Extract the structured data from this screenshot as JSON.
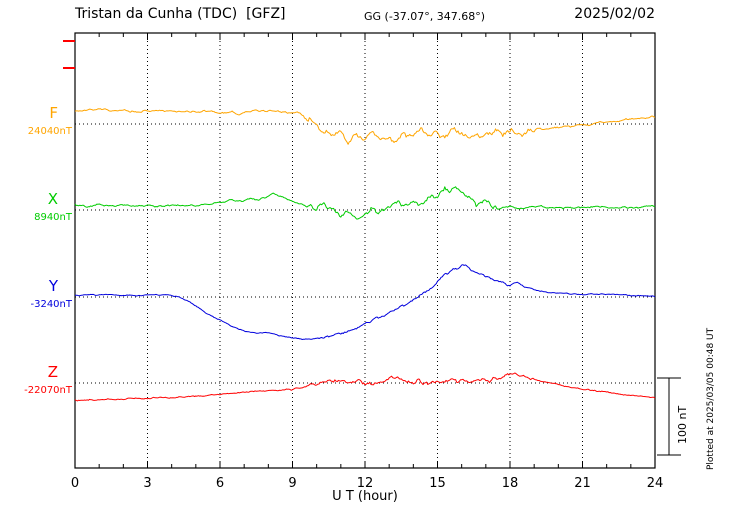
{
  "chart_data": {
    "type": "line",
    "title": "Tristan da Cunha (TDC)  [GFZ]",
    "coords_label": "GG (-37.07°, 347.68°)",
    "date": "2025/02/02",
    "xlabel": "U T (hour)",
    "xlim": [
      0,
      24
    ],
    "x_ticks": [
      0,
      3,
      6,
      9,
      12,
      15,
      18,
      21,
      24
    ],
    "x_minor_tick_hours": 1,
    "grid": "dotted vertical lines at 3-hour marks; dotted horizontal baseline for each component",
    "legend_position": "left margin, one colored label per component",
    "scale_bar": {
      "label": "100 nT",
      "nT": 100
    },
    "plotted_note": "Plotted at 2025/03/05 00:48 UT",
    "axis_color": "#000000",
    "series": [
      {
        "name": "F",
        "label": "F",
        "baseline_label": "24040nT",
        "baseline_nT": 24040,
        "color": "#ffa500",
        "unit": "nT",
        "offsets_keypoints": [
          [
            0,
            16
          ],
          [
            0.5,
            18
          ],
          [
            1,
            20
          ],
          [
            1.5,
            17
          ],
          [
            2,
            18
          ],
          [
            2.5,
            16
          ],
          [
            3,
            17
          ],
          [
            3.5,
            18
          ],
          [
            4,
            16
          ],
          [
            4.5,
            17
          ],
          [
            5,
            15
          ],
          [
            5.5,
            17
          ],
          [
            6,
            14
          ],
          [
            6.5,
            16
          ],
          [
            6.8,
            11
          ],
          [
            7,
            16
          ],
          [
            7.5,
            17
          ],
          [
            8,
            18
          ],
          [
            8.5,
            16
          ],
          [
            9,
            15
          ],
          [
            9.3,
            14
          ],
          [
            9.6,
            8
          ],
          [
            10,
            -2
          ],
          [
            10.3,
            -10
          ],
          [
            10.6,
            -16
          ],
          [
            11,
            -12
          ],
          [
            11.3,
            -22
          ],
          [
            11.6,
            -14
          ],
          [
            12,
            -18
          ],
          [
            12.3,
            -10
          ],
          [
            12.6,
            -20
          ],
          [
            13,
            -14
          ],
          [
            13.3,
            -26
          ],
          [
            13.6,
            -12
          ],
          [
            14,
            -16
          ],
          [
            14.3,
            -8
          ],
          [
            14.6,
            -14
          ],
          [
            15,
            -10
          ],
          [
            15.3,
            -16
          ],
          [
            15.6,
            -8
          ],
          [
            16,
            -12
          ],
          [
            16.3,
            -18
          ],
          [
            16.6,
            -12
          ],
          [
            17,
            -14
          ],
          [
            17.3,
            -9
          ],
          [
            17.6,
            -12
          ],
          [
            18,
            -6
          ],
          [
            18.4,
            -12
          ],
          [
            18.8,
            -8
          ],
          [
            19,
            -6
          ],
          [
            19.5,
            -7
          ],
          [
            20,
            -4
          ],
          [
            20.5,
            -3
          ],
          [
            21,
            -1
          ],
          [
            21.5,
            1
          ],
          [
            22,
            3
          ],
          [
            22.5,
            5
          ],
          [
            23,
            6
          ],
          [
            23.5,
            8
          ],
          [
            24,
            10
          ]
        ],
        "noise": {
          "quiet": 1.5,
          "active": 4.5,
          "active_start": 9.5,
          "active_end": 19
        }
      },
      {
        "name": "X",
        "label": "X",
        "baseline_label": "8940nT",
        "baseline_nT": 8940,
        "color": "#00cc00",
        "unit": "nT",
        "offsets_keypoints": [
          [
            0,
            7
          ],
          [
            0.5,
            5
          ],
          [
            1,
            7
          ],
          [
            1.5,
            6
          ],
          [
            2,
            8
          ],
          [
            2.5,
            5
          ],
          [
            3,
            6
          ],
          [
            3.5,
            5
          ],
          [
            4,
            7
          ],
          [
            4.5,
            5
          ],
          [
            5,
            6
          ],
          [
            5.5,
            8
          ],
          [
            6,
            9
          ],
          [
            6.5,
            13
          ],
          [
            7,
            11
          ],
          [
            7.3,
            15
          ],
          [
            7.6,
            13
          ],
          [
            8,
            19
          ],
          [
            8.2,
            22
          ],
          [
            8.5,
            18
          ],
          [
            9,
            12
          ],
          [
            9.5,
            6
          ],
          [
            10,
            2
          ],
          [
            10.3,
            6
          ],
          [
            10.6,
            0
          ],
          [
            11,
            -8
          ],
          [
            11.3,
            -2
          ],
          [
            11.6,
            -10
          ],
          [
            12,
            -4
          ],
          [
            12.3,
            2
          ],
          [
            12.6,
            -4
          ],
          [
            13,
            6
          ],
          [
            13.3,
            10
          ],
          [
            13.6,
            4
          ],
          [
            14,
            12
          ],
          [
            14.3,
            8
          ],
          [
            14.6,
            14
          ],
          [
            15,
            18
          ],
          [
            15.3,
            26
          ],
          [
            15.5,
            20
          ],
          [
            15.7,
            30
          ],
          [
            16,
            24
          ],
          [
            16.3,
            14
          ],
          [
            16.6,
            8
          ],
          [
            17,
            10
          ],
          [
            17.3,
            4
          ],
          [
            17.6,
            2
          ],
          [
            18,
            5
          ],
          [
            18.5,
            2
          ],
          [
            19,
            4
          ],
          [
            19.5,
            3
          ],
          [
            20,
            4
          ],
          [
            21,
            3
          ],
          [
            22,
            4
          ],
          [
            23,
            3
          ],
          [
            24,
            5
          ]
        ],
        "noise": {
          "quiet": 1.5,
          "active": 4,
          "active_start": 9.5,
          "active_end": 17.5
        }
      },
      {
        "name": "Y",
        "label": "Y",
        "baseline_label": "-3240nT",
        "baseline_nT": -3240,
        "color": "#0000dd",
        "unit": "nT",
        "offsets_keypoints": [
          [
            0,
            2
          ],
          [
            1,
            3
          ],
          [
            2,
            2
          ],
          [
            3,
            2
          ],
          [
            3.5,
            3
          ],
          [
            4,
            2
          ],
          [
            4.3,
            0
          ],
          [
            4.6,
            -4
          ],
          [
            5,
            -12
          ],
          [
            5.5,
            -22
          ],
          [
            6,
            -30
          ],
          [
            6.5,
            -38
          ],
          [
            7,
            -44
          ],
          [
            7.5,
            -47
          ],
          [
            8,
            -46
          ],
          [
            8.3,
            -49
          ],
          [
            8.6,
            -51
          ],
          [
            9,
            -53
          ],
          [
            9.5,
            -55
          ],
          [
            10,
            -54
          ],
          [
            10.5,
            -51
          ],
          [
            11,
            -47
          ],
          [
            11.5,
            -42
          ],
          [
            12,
            -35
          ],
          [
            12.5,
            -28
          ],
          [
            13,
            -21
          ],
          [
            13.5,
            -13
          ],
          [
            14,
            -5
          ],
          [
            14.5,
            6
          ],
          [
            15,
            20
          ],
          [
            15.3,
            28
          ],
          [
            15.6,
            35
          ],
          [
            16,
            42
          ],
          [
            16.2,
            40
          ],
          [
            16.5,
            34
          ],
          [
            17,
            27
          ],
          [
            17.5,
            20
          ],
          [
            18,
            16
          ],
          [
            18.3,
            19
          ],
          [
            18.6,
            13
          ],
          [
            19,
            9
          ],
          [
            19.5,
            6
          ],
          [
            20,
            5
          ],
          [
            20.5,
            4
          ],
          [
            21,
            3
          ],
          [
            22,
            4
          ],
          [
            23,
            2
          ],
          [
            24,
            1
          ]
        ],
        "noise": {
          "quiet": 0.8,
          "active": 2,
          "active_start": 10,
          "active_end": 18
        }
      },
      {
        "name": "Z",
        "label": "Z",
        "baseline_label": "-22070nT",
        "baseline_nT": -22070,
        "color": "#ff0000",
        "unit": "nT",
        "offsets_keypoints": [
          [
            0,
            -23
          ],
          [
            0.5,
            -22
          ],
          [
            1,
            -22
          ],
          [
            1.5,
            -21
          ],
          [
            2,
            -21
          ],
          [
            2.5,
            -20
          ],
          [
            3,
            -20
          ],
          [
            3.5,
            -19
          ],
          [
            4,
            -19
          ],
          [
            4.5,
            -18
          ],
          [
            5,
            -17
          ],
          [
            5.5,
            -16
          ],
          [
            6,
            -15
          ],
          [
            6.5,
            -13
          ],
          [
            7,
            -12
          ],
          [
            7.5,
            -11
          ],
          [
            8,
            -10
          ],
          [
            8.5,
            -9
          ],
          [
            9,
            -8
          ],
          [
            9.5,
            -5
          ],
          [
            10,
            -2
          ],
          [
            10.3,
            1
          ],
          [
            10.6,
            3
          ],
          [
            11,
            4
          ],
          [
            11.3,
            1
          ],
          [
            11.6,
            2
          ],
          [
            12,
            0
          ],
          [
            12.3,
            -2
          ],
          [
            12.6,
            1
          ],
          [
            13,
            4
          ],
          [
            13.3,
            8
          ],
          [
            13.6,
            2
          ],
          [
            14,
            0
          ],
          [
            14.3,
            3
          ],
          [
            14.6,
            -1
          ],
          [
            15,
            3
          ],
          [
            15.3,
            1
          ],
          [
            15.6,
            4
          ],
          [
            16,
            1
          ],
          [
            16.5,
            2
          ],
          [
            17,
            4
          ],
          [
            17.5,
            6
          ],
          [
            18,
            11
          ],
          [
            18.2,
            13
          ],
          [
            18.5,
            8
          ],
          [
            19,
            4
          ],
          [
            19.5,
            1
          ],
          [
            20,
            -2
          ],
          [
            20.5,
            -5
          ],
          [
            21,
            -8
          ],
          [
            21.5,
            -10
          ],
          [
            22,
            -12
          ],
          [
            22.5,
            -14
          ],
          [
            23,
            -16
          ],
          [
            23.5,
            -17
          ],
          [
            24,
            -19
          ]
        ],
        "noise": {
          "quiet": 1,
          "active": 3,
          "active_start": 9.5,
          "active_end": 19
        }
      }
    ]
  }
}
